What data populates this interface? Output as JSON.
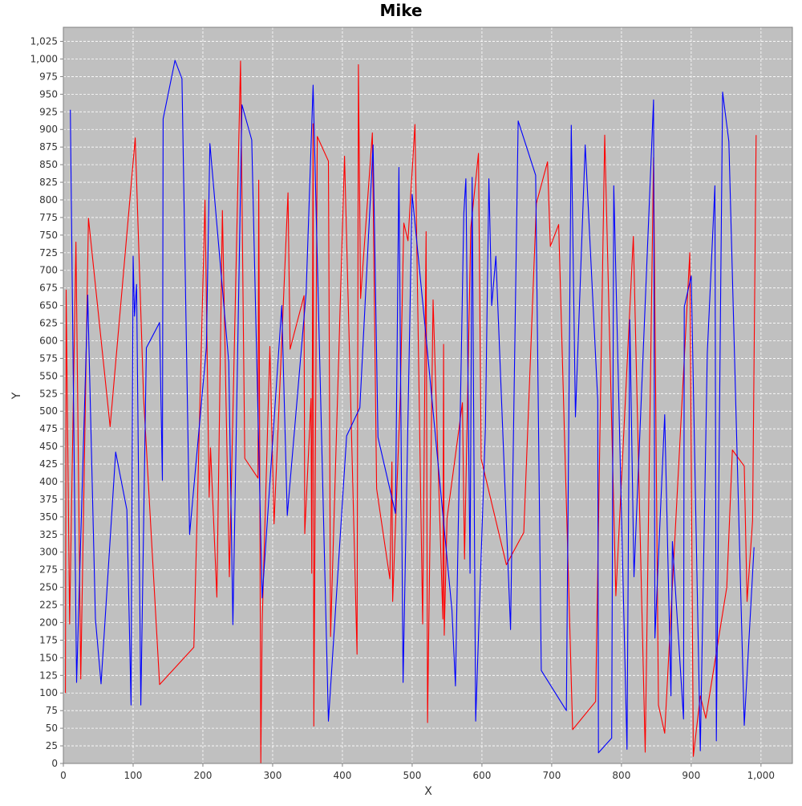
{
  "chart_data": {
    "type": "line",
    "title": "Mike",
    "xlabel": "X",
    "ylabel": "Y",
    "xlim": [
      0,
      1045
    ],
    "ylim": [
      0,
      1045
    ],
    "x_ticks": [
      "0",
      "100",
      "200",
      "300",
      "400",
      "500",
      "600",
      "700",
      "800",
      "900",
      "1,000"
    ],
    "y_ticks": [
      "0",
      "25",
      "50",
      "75",
      "100",
      "125",
      "150",
      "175",
      "200",
      "225",
      "250",
      "275",
      "300",
      "325",
      "350",
      "375",
      "400",
      "425",
      "450",
      "475",
      "500",
      "525",
      "550",
      "575",
      "600",
      "625",
      "650",
      "675",
      "700",
      "725",
      "750",
      "775",
      "800",
      "825",
      "850",
      "875",
      "900",
      "925",
      "950",
      "975",
      "1,000",
      "1,025"
    ],
    "grid": true,
    "plot_background": "#c0c0c0",
    "gridline_color": "#ffffff",
    "series": [
      {
        "color": "#ff0000",
        "points": [
          [
            3,
            100
          ],
          [
            4,
            672
          ],
          [
            9,
            198
          ],
          [
            18,
            740
          ],
          [
            25,
            120
          ],
          [
            36,
            774
          ],
          [
            67,
            478
          ],
          [
            103,
            888
          ],
          [
            115,
            520
          ],
          [
            138,
            112
          ],
          [
            187,
            165
          ],
          [
            203,
            800
          ],
          [
            209,
            378
          ],
          [
            211,
            448
          ],
          [
            220,
            236
          ],
          [
            228,
            785
          ],
          [
            238,
            265
          ],
          [
            254,
            997
          ],
          [
            260,
            433
          ],
          [
            279,
            405
          ],
          [
            280,
            828
          ],
          [
            283,
            0
          ],
          [
            285,
            200
          ],
          [
            296,
            592
          ],
          [
            302,
            340
          ],
          [
            322,
            810
          ],
          [
            325,
            588
          ],
          [
            345,
            664
          ],
          [
            346,
            326
          ],
          [
            355,
            518
          ],
          [
            356,
            270
          ],
          [
            358,
            908
          ],
          [
            359,
            53
          ],
          [
            364,
            890
          ],
          [
            380,
            855
          ],
          [
            383,
            180
          ],
          [
            403,
            862
          ],
          [
            421,
            155
          ],
          [
            423,
            992
          ],
          [
            426,
            660
          ],
          [
            443,
            895
          ],
          [
            449,
            390
          ],
          [
            468,
            262
          ],
          [
            471,
            428
          ],
          [
            472,
            230
          ],
          [
            483,
            520
          ],
          [
            488,
            767
          ],
          [
            494,
            742
          ],
          [
            504,
            907
          ],
          [
            515,
            198
          ],
          [
            520,
            755
          ],
          [
            522,
            58
          ],
          [
            530,
            658
          ],
          [
            544,
            205
          ],
          [
            545,
            595
          ],
          [
            546,
            182
          ],
          [
            550,
            348
          ],
          [
            572,
            512
          ],
          [
            575,
            290
          ],
          [
            584,
            760
          ],
          [
            595,
            866
          ],
          [
            599,
            432
          ],
          [
            635,
            282
          ],
          [
            660,
            328
          ],
          [
            678,
            795
          ],
          [
            694,
            854
          ],
          [
            698,
            734
          ],
          [
            710,
            765
          ],
          [
            730,
            48
          ],
          [
            763,
            88
          ],
          [
            776,
            892
          ],
          [
            792,
            238
          ],
          [
            817,
            748
          ],
          [
            826,
            360
          ],
          [
            834,
            16
          ],
          [
            846,
            860
          ],
          [
            853,
            83
          ],
          [
            862,
            43
          ],
          [
            898,
            725
          ],
          [
            903,
            10
          ],
          [
            913,
            96
          ],
          [
            921,
            64
          ],
          [
            951,
            250
          ],
          [
            959,
            445
          ],
          [
            976,
            422
          ],
          [
            980,
            230
          ],
          [
            988,
            345
          ],
          [
            993,
            892
          ]
        ]
      },
      {
        "color": "#0000ff",
        "points": [
          [
            10,
            928
          ],
          [
            19,
            115
          ],
          [
            35,
            665
          ],
          [
            46,
            205
          ],
          [
            54,
            113
          ],
          [
            75,
            442
          ],
          [
            91,
            360
          ],
          [
            97,
            83
          ],
          [
            100,
            720
          ],
          [
            102,
            635
          ],
          [
            105,
            680
          ],
          [
            111,
            83
          ],
          [
            119,
            590
          ],
          [
            138,
            626
          ],
          [
            142,
            402
          ],
          [
            143,
            915
          ],
          [
            160,
            998
          ],
          [
            170,
            972
          ],
          [
            181,
            325
          ],
          [
            205,
            590
          ],
          [
            210,
            880
          ],
          [
            237,
            570
          ],
          [
            243,
            197
          ],
          [
            256,
            935
          ],
          [
            270,
            885
          ],
          [
            285,
            235
          ],
          [
            313,
            650
          ],
          [
            321,
            352
          ],
          [
            348,
            668
          ],
          [
            358,
            963
          ],
          [
            380,
            60
          ],
          [
            406,
            465
          ],
          [
            425,
            505
          ],
          [
            444,
            878
          ],
          [
            451,
            463
          ],
          [
            476,
            355
          ],
          [
            481,
            846
          ],
          [
            487,
            115
          ],
          [
            500,
            808
          ],
          [
            518,
            625
          ],
          [
            557,
            218
          ],
          [
            562,
            110
          ],
          [
            574,
            780
          ],
          [
            577,
            830
          ],
          [
            583,
            270
          ],
          [
            586,
            832
          ],
          [
            591,
            60
          ],
          [
            605,
            478
          ],
          [
            610,
            830
          ],
          [
            614,
            650
          ],
          [
            620,
            720
          ],
          [
            641,
            190
          ],
          [
            652,
            912
          ],
          [
            677,
            835
          ],
          [
            685,
            132
          ],
          [
            721,
            75
          ],
          [
            728,
            906
          ],
          [
            734,
            492
          ],
          [
            748,
            878
          ],
          [
            766,
            516
          ],
          [
            767,
            15
          ],
          [
            786,
            36
          ],
          [
            789,
            820
          ],
          [
            808,
            20
          ],
          [
            812,
            630
          ],
          [
            818,
            265
          ],
          [
            846,
            942
          ],
          [
            848,
            178
          ],
          [
            862,
            495
          ],
          [
            871,
            96
          ],
          [
            873,
            315
          ],
          [
            889,
            63
          ],
          [
            890,
            648
          ],
          [
            900,
            692
          ],
          [
            913,
            18
          ],
          [
            923,
            582
          ],
          [
            934,
            820
          ],
          [
            936,
            32
          ],
          [
            945,
            953
          ],
          [
            954,
            883
          ],
          [
            976,
            54
          ],
          [
            990,
            307
          ]
        ]
      }
    ]
  }
}
